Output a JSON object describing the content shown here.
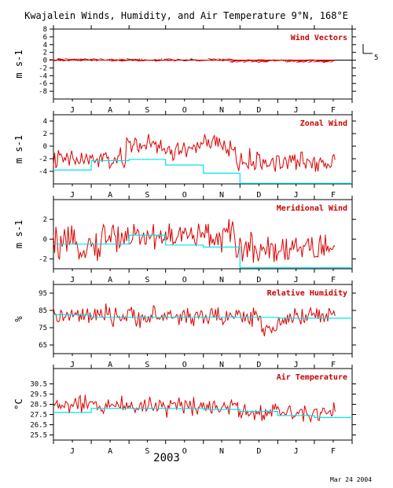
{
  "title": "Kwajalein Winds, Humidity, and Air Temperature 9°N, 168°E",
  "year_label": "2003",
  "date_stamp": "Mar 24 2004",
  "months": [
    "J",
    "A",
    "S",
    "O",
    "N",
    "D",
    "J",
    "F"
  ],
  "colors": {
    "data": "#dd0000",
    "mean": "#00e5ee",
    "axis": "#000000"
  },
  "chart_data": [
    {
      "type": "line",
      "title": "Wind Vectors",
      "ylabel": "m s-1",
      "ylim": [
        -10,
        8
      ],
      "yticks": [
        -8,
        -4,
        0,
        4,
        8
      ],
      "yticklabels": [
        "-8",
        "-4",
        "0",
        "4",
        "8"
      ],
      "minor_yticks": [
        -6,
        -2,
        2,
        6
      ],
      "minor_yticklabels": [
        "-6",
        "-2",
        "2",
        "6"
      ],
      "zero_line": true,
      "scale_key": {
        "label": "5",
        "value": 5
      },
      "series": []
    },
    {
      "type": "line",
      "title": "Zonal Wind",
      "ylabel": "m s-1",
      "ylim": [
        -6,
        5
      ],
      "yticks": [
        -4,
        -2,
        0,
        2,
        4
      ],
      "yticklabels": [
        "-4",
        "-2",
        "0",
        "2",
        "4"
      ],
      "series": [
        {
          "role": "daily",
          "color": "#dd0000"
        },
        {
          "role": "monthly-mean",
          "color": "#00e5ee",
          "steps": [
            [
              0,
              31,
              -3.8
            ],
            [
              31,
              62,
              -2.3
            ],
            [
              62,
              92,
              -2.1
            ],
            [
              92,
              123,
              -3.0
            ],
            [
              123,
              153,
              -4.3
            ],
            [
              153,
              245,
              -5.9
            ]
          ]
        }
      ]
    },
    {
      "type": "line",
      "title": "Meridional Wind",
      "ylabel": "m s-1",
      "ylim": [
        -3,
        4
      ],
      "yticks": [
        -2,
        0,
        2
      ],
      "yticklabels": [
        "-2",
        "0",
        "2"
      ],
      "series": [
        {
          "role": "daily",
          "color": "#dd0000"
        },
        {
          "role": "monthly-mean",
          "color": "#00e5ee",
          "steps": [
            [
              0,
              31,
              -0.5
            ],
            [
              31,
              62,
              -0.5
            ],
            [
              62,
              92,
              0.4
            ],
            [
              92,
              123,
              -0.6
            ],
            [
              123,
              153,
              -0.8
            ],
            [
              153,
              245,
              -2.9
            ]
          ]
        }
      ]
    },
    {
      "type": "line",
      "title": "Relative Humidity",
      "ylabel": "%",
      "ylim": [
        60,
        100
      ],
      "yticks": [
        65,
        75,
        85,
        95
      ],
      "yticklabels": [
        "65",
        "75",
        "85",
        "95"
      ],
      "series": [
        {
          "role": "daily",
          "color": "#dd0000"
        },
        {
          "role": "monthly-mean",
          "color": "#00e5ee",
          "steps": [
            [
              0,
              31,
              82.5
            ],
            [
              31,
              62,
              81
            ],
            [
              62,
              92,
              81
            ],
            [
              92,
              123,
              81
            ],
            [
              123,
              153,
              81
            ],
            [
              153,
              184,
              81
            ],
            [
              184,
              214,
              80.5
            ],
            [
              214,
              245,
              80.5
            ]
          ]
        }
      ]
    },
    {
      "type": "line",
      "title": "Air Temperature",
      "ylabel": "°C",
      "ylim": [
        25,
        32
      ],
      "yticks": [
        25.5,
        26.5,
        27.5,
        28.5,
        29.5,
        30.5
      ],
      "yticklabels": [
        "25.5",
        "26.5",
        "27.5",
        "28.5",
        "29.5",
        "30.5"
      ],
      "series": [
        {
          "role": "daily",
          "color": "#dd0000"
        },
        {
          "role": "monthly-mean",
          "color": "#00e5ee",
          "steps": [
            [
              0,
              31,
              27.7
            ],
            [
              31,
              62,
              28.1
            ],
            [
              62,
              92,
              28.1
            ],
            [
              92,
              123,
              28.1
            ],
            [
              123,
              153,
              28.0
            ],
            [
              153,
              184,
              27.8
            ],
            [
              184,
              214,
              27.4
            ],
            [
              214,
              245,
              27.2
            ]
          ]
        }
      ]
    }
  ]
}
